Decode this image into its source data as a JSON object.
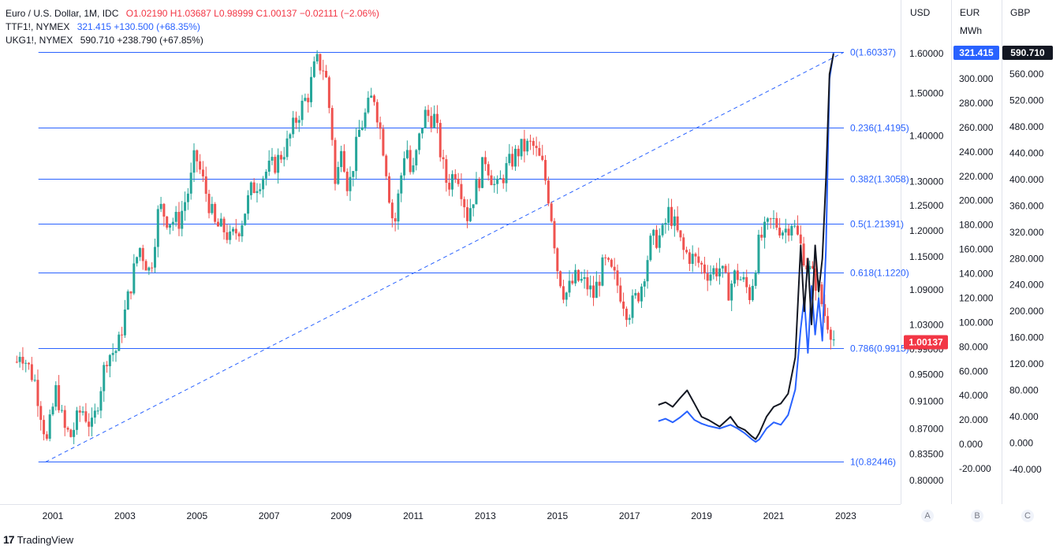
{
  "legend": {
    "main_symbol": "Euro / U.S. Dollar, 1M, IDC",
    "main_ohlc": "O1.02190  H1.03687  L0.98999  C1.00137  −0.02111 (−2.06%)",
    "ttf_symbol": "TTF1!, NYMEX",
    "ttf_values": "321.415  +130.500 (+68.35%)",
    "ukg_symbol": "UKG1!, NYMEX",
    "ukg_values": "590.710  +238.790 (+67.85%)"
  },
  "scales": {
    "usd_header": "USD",
    "eur_header": "EUR",
    "eur_unit": "MWh",
    "gbp_header": "GBP",
    "footer_a": "A",
    "footer_b": "B",
    "footer_c": "C"
  },
  "branding": {
    "name": "TradingView"
  },
  "colors": {
    "up": "#26a69a",
    "down": "#ef5350",
    "fib": "#2962ff",
    "ttf": "#2962ff",
    "ukg": "#131722"
  },
  "chart_data": {
    "type": "candlestick",
    "title": "Euro / U.S. Dollar, 1M, IDC",
    "x_tick_labels": [
      "2001",
      "2003",
      "2005",
      "2007",
      "2009",
      "2011",
      "2013",
      "2015",
      "2017",
      "2019",
      "2021",
      "2023"
    ],
    "usd_scale": {
      "log": true,
      "ticks": [
        "0.80000",
        "0.83500",
        "0.87000",
        "0.91000",
        "0.95000",
        "0.99000",
        "1.03000",
        "1.09000",
        "1.15000",
        "1.20000",
        "1.25000",
        "1.30000",
        "1.40000",
        "1.50000",
        "1.60000"
      ],
      "last": "1.00137"
    },
    "eur_scale": {
      "ylim": [
        -20,
        300
      ],
      "ticks": [
        "-20.000",
        "0.000",
        "20.000",
        "40.000",
        "60.000",
        "80.000",
        "100.000",
        "120.000",
        "140.000",
        "160.000",
        "180.000",
        "200.000",
        "220.000",
        "240.000",
        "260.000",
        "280.000",
        "300.000"
      ],
      "last": "321.415"
    },
    "gbp_scale": {
      "ylim": [
        -40,
        560
      ],
      "ticks": [
        "-40.000",
        "0.000",
        "40.000",
        "80.000",
        "120.000",
        "160.000",
        "200.000",
        "240.000",
        "280.000",
        "320.000",
        "360.000",
        "400.000",
        "440.000",
        "480.000",
        "520.000",
        "560.000"
      ],
      "last": "590.710"
    },
    "fib_levels": [
      {
        "label": "0(1.60337)",
        "value": 1.60337
      },
      {
        "label": "0.236(1.4195)",
        "value": 1.4195
      },
      {
        "label": "0.382(1.3058)",
        "value": 1.3058
      },
      {
        "label": "0.5(1.21391)",
        "value": 1.21391
      },
      {
        "label": "0.618(1.1220)",
        "value": 1.122
      },
      {
        "label": "0.786(0.9915)",
        "value": 0.9915
      },
      {
        "label": "1(0.82446)",
        "value": 0.82446
      }
    ],
    "fib_trend": {
      "from": [
        2000.8,
        0.82446
      ],
      "to": [
        2022.5,
        1.60337
      ]
    },
    "eurusd_anchors": [
      [
        2000.0,
        0.97
      ],
      [
        2000.1,
        0.99
      ],
      [
        2000.5,
        0.94
      ],
      [
        2000.83,
        0.85
      ],
      [
        2001.1,
        0.93
      ],
      [
        2001.3,
        0.87
      ],
      [
        2001.5,
        0.86
      ],
      [
        2001.8,
        0.9
      ],
      [
        2002.1,
        0.87
      ],
      [
        2002.5,
        0.98
      ],
      [
        2002.8,
        0.99
      ],
      [
        2003.0,
        1.05
      ],
      [
        2003.4,
        1.17
      ],
      [
        2003.7,
        1.12
      ],
      [
        2003.95,
        1.25
      ],
      [
        2004.2,
        1.22
      ],
      [
        2004.5,
        1.22
      ],
      [
        2004.8,
        1.29
      ],
      [
        2004.95,
        1.36
      ],
      [
        2005.2,
        1.29
      ],
      [
        2005.5,
        1.21
      ],
      [
        2005.8,
        1.2
      ],
      [
        2005.9,
        1.18
      ],
      [
        2006.2,
        1.21
      ],
      [
        2006.5,
        1.28
      ],
      [
        2006.9,
        1.32
      ],
      [
        2007.2,
        1.34
      ],
      [
        2007.5,
        1.38
      ],
      [
        2007.8,
        1.45
      ],
      [
        2008.1,
        1.5
      ],
      [
        2008.3,
        1.58
      ],
      [
        2008.55,
        1.56
      ],
      [
        2008.75,
        1.4
      ],
      [
        2008.85,
        1.27
      ],
      [
        2009.0,
        1.39
      ],
      [
        2009.2,
        1.28
      ],
      [
        2009.5,
        1.41
      ],
      [
        2009.9,
        1.5
      ],
      [
        2010.2,
        1.36
      ],
      [
        2010.4,
        1.23
      ],
      [
        2010.5,
        1.22
      ],
      [
        2010.8,
        1.39
      ],
      [
        2010.95,
        1.3
      ],
      [
        2011.3,
        1.45
      ],
      [
        2011.6,
        1.44
      ],
      [
        2011.8,
        1.34
      ],
      [
        2011.95,
        1.29
      ],
      [
        2012.2,
        1.33
      ],
      [
        2012.5,
        1.23
      ],
      [
        2012.8,
        1.3
      ],
      [
        2013.0,
        1.35
      ],
      [
        2013.3,
        1.28
      ],
      [
        2013.6,
        1.33
      ],
      [
        2013.95,
        1.37
      ],
      [
        2014.3,
        1.38
      ],
      [
        2014.6,
        1.33
      ],
      [
        2014.8,
        1.25
      ],
      [
        2015.0,
        1.13
      ],
      [
        2015.2,
        1.08
      ],
      [
        2015.5,
        1.11
      ],
      [
        2015.8,
        1.1
      ],
      [
        2016.0,
        1.08
      ],
      [
        2016.3,
        1.14
      ],
      [
        2016.6,
        1.11
      ],
      [
        2016.9,
        1.06
      ],
      [
        2016.95,
        1.05
      ],
      [
        2017.3,
        1.09
      ],
      [
        2017.6,
        1.18
      ],
      [
        2017.9,
        1.19
      ],
      [
        2018.1,
        1.24
      ],
      [
        2018.3,
        1.2
      ],
      [
        2018.5,
        1.16
      ],
      [
        2018.9,
        1.14
      ],
      [
        2019.2,
        1.12
      ],
      [
        2019.5,
        1.13
      ],
      [
        2019.75,
        1.09
      ],
      [
        2019.95,
        1.12
      ],
      [
        2020.2,
        1.1
      ],
      [
        2020.35,
        1.08
      ],
      [
        2020.6,
        1.18
      ],
      [
        2020.95,
        1.22
      ],
      [
        2021.3,
        1.2
      ],
      [
        2021.5,
        1.22
      ],
      [
        2021.8,
        1.16
      ],
      [
        2021.95,
        1.13
      ],
      [
        2022.2,
        1.1
      ],
      [
        2022.4,
        1.05
      ],
      [
        2022.6,
        1.02
      ],
      [
        2022.7,
        1.0
      ]
    ],
    "series": [
      {
        "name": "TTF1!, NYMEX",
        "axis": "EUR",
        "color": "#2962ff",
        "points": [
          [
            2017.8,
            19
          ],
          [
            2018.0,
            21
          ],
          [
            2018.2,
            18
          ],
          [
            2018.4,
            22
          ],
          [
            2018.6,
            27
          ],
          [
            2018.8,
            20
          ],
          [
            2019.0,
            17
          ],
          [
            2019.2,
            15
          ],
          [
            2019.5,
            13
          ],
          [
            2019.8,
            16
          ],
          [
            2020.0,
            13
          ],
          [
            2020.2,
            9
          ],
          [
            2020.4,
            4
          ],
          [
            2020.5,
            2
          ],
          [
            2020.6,
            4
          ],
          [
            2020.8,
            13
          ],
          [
            2021.0,
            18
          ],
          [
            2021.2,
            16
          ],
          [
            2021.4,
            24
          ],
          [
            2021.6,
            45
          ],
          [
            2021.75,
            95
          ],
          [
            2021.85,
            120
          ],
          [
            2021.95,
            75
          ],
          [
            2022.05,
            130
          ],
          [
            2022.15,
            90
          ],
          [
            2022.25,
            120
          ],
          [
            2022.35,
            85
          ],
          [
            2022.45,
            160
          ],
          [
            2022.55,
            300
          ],
          [
            2022.66,
            321.4
          ]
        ]
      },
      {
        "name": "UKG1!, NYMEX",
        "axis": "GBP",
        "color": "#131722",
        "points": [
          [
            2017.8,
            58
          ],
          [
            2018.0,
            62
          ],
          [
            2018.2,
            55
          ],
          [
            2018.4,
            68
          ],
          [
            2018.6,
            80
          ],
          [
            2018.8,
            60
          ],
          [
            2019.0,
            40
          ],
          [
            2019.2,
            35
          ],
          [
            2019.5,
            25
          ],
          [
            2019.8,
            40
          ],
          [
            2020.0,
            25
          ],
          [
            2020.2,
            20
          ],
          [
            2020.4,
            10
          ],
          [
            2020.5,
            6
          ],
          [
            2020.6,
            15
          ],
          [
            2020.8,
            40
          ],
          [
            2021.0,
            55
          ],
          [
            2021.2,
            60
          ],
          [
            2021.4,
            75
          ],
          [
            2021.6,
            130
          ],
          [
            2021.75,
            300
          ],
          [
            2021.85,
            200
          ],
          [
            2021.95,
            280
          ],
          [
            2022.05,
            180
          ],
          [
            2022.15,
            300
          ],
          [
            2022.25,
            230
          ],
          [
            2022.35,
            280
          ],
          [
            2022.45,
            400
          ],
          [
            2022.55,
            560
          ],
          [
            2022.66,
            590.7
          ]
        ]
      }
    ]
  }
}
